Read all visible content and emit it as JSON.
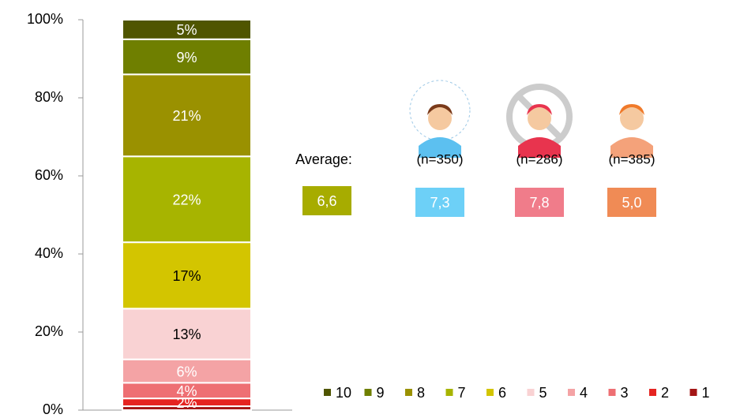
{
  "chart_data": {
    "type": "bar",
    "stacked": true,
    "categories": [
      null
    ],
    "series": [
      {
        "name": "1",
        "color": "#a31515",
        "values": [
          1
        ]
      },
      {
        "name": "2",
        "color": "#e52421",
        "values": [
          2
        ],
        "value_labels": [
          "2%"
        ]
      },
      {
        "name": "3",
        "color": "#ee6f73",
        "values": [
          4
        ],
        "value_labels": [
          "4%"
        ]
      },
      {
        "name": "4",
        "color": "#f4a3a5",
        "values": [
          6
        ],
        "value_labels": [
          "6%"
        ]
      },
      {
        "name": "5",
        "color": "#f9d2d3",
        "values": [
          13
        ],
        "value_labels": [
          "13%"
        ]
      },
      {
        "name": "6",
        "color": "#d3c500",
        "values": [
          17
        ],
        "value_labels": [
          "17%"
        ]
      },
      {
        "name": "7",
        "color": "#a7b400",
        "values": [
          22
        ],
        "value_labels": [
          "22%"
        ]
      },
      {
        "name": "8",
        "color": "#9a9100",
        "values": [
          21
        ],
        "value_labels": [
          "21%"
        ]
      },
      {
        "name": "9",
        "color": "#6f7f00",
        "values": [
          9
        ],
        "value_labels": [
          "9%"
        ]
      },
      {
        "name": "10",
        "color": "#4f5500",
        "values": [
          5
        ],
        "value_labels": [
          "5%"
        ]
      }
    ],
    "ylim": [
      0,
      100
    ],
    "yticks": [
      {
        "value": 0,
        "label": "0%"
      },
      {
        "value": 20,
        "label": "20%"
      },
      {
        "value": 40,
        "label": "40%"
      },
      {
        "value": 60,
        "label": "60%"
      },
      {
        "value": 80,
        "label": "80%"
      },
      {
        "value": 100,
        "label": "100%"
      }
    ],
    "legend": "bottom-right"
  },
  "panel": {
    "average_label": "Average:",
    "overall": {
      "value": 6.6,
      "label": "6,6",
      "color": "#a7ac00"
    },
    "groups": [
      {
        "n": "(n=350)",
        "value": 7.3,
        "label": "7,3",
        "color": "#6dd0f7"
      },
      {
        "n": "(n=286)",
        "value": 7.8,
        "label": "7,8",
        "color": "#f07c8a"
      },
      {
        "n": "(n=385)",
        "value": 5.0,
        "label": "5,0",
        "color": "#f08b55"
      }
    ]
  }
}
